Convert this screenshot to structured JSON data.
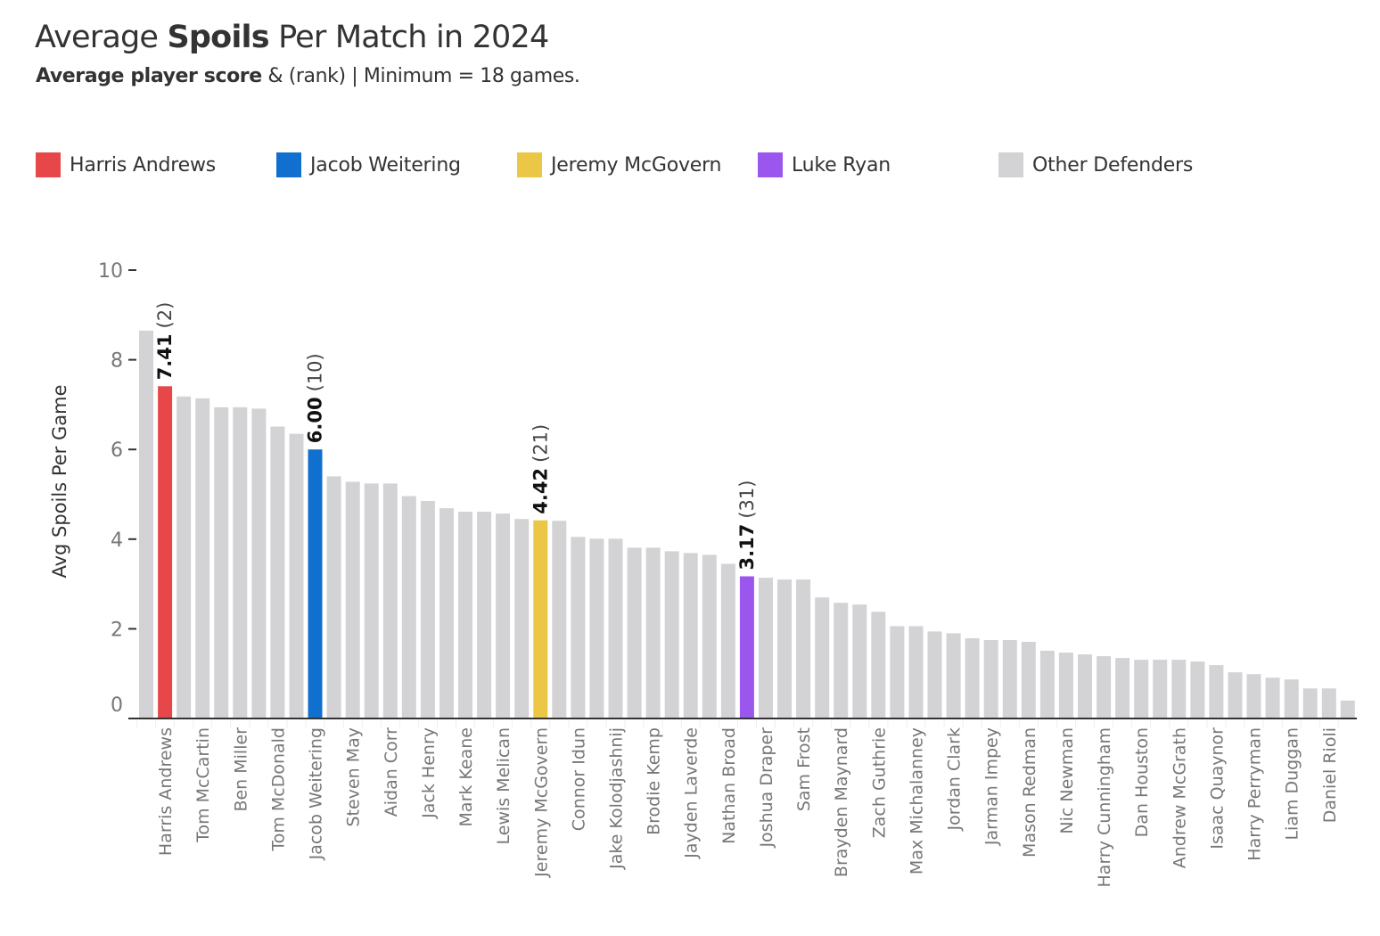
{
  "title": {
    "prefix": "Average ",
    "bold": "Spoils",
    "suffix": " Per Match in 2024"
  },
  "subtitle": {
    "bold": "Average player score",
    "rest": " & (rank) | Minimum = 18 games."
  },
  "legend": [
    {
      "label": "Harris Andrews",
      "color": "#e8474a"
    },
    {
      "label": "Jacob Weitering",
      "color": "#1170cf"
    },
    {
      "label": "Jeremy McGovern",
      "color": "#ebc745"
    },
    {
      "label": "Luke Ryan",
      "color": "#9b56ee"
    },
    {
      "label": "Other Defenders",
      "color": "#d3d3d5"
    }
  ],
  "chart_data": {
    "type": "bar",
    "title": "Average Spoils Per Match in 2024",
    "xlabel": "",
    "ylabel": "Avg Spoils Per Game",
    "ylim": [
      0,
      10
    ],
    "yticks": [
      0,
      2,
      4,
      6,
      8,
      10
    ],
    "grid": false,
    "legend_position": "top",
    "categories": [
      "",
      "Harris Andrews",
      "",
      "Tom McCartin",
      "",
      "Ben Miller",
      "",
      "Tom McDonald",
      "",
      "Jacob Weitering",
      "",
      "Steven May",
      "",
      "Aidan Corr",
      "",
      "Jack Henry",
      "",
      "Mark Keane",
      "",
      "Lewis Melican",
      "",
      "Jeremy McGovern",
      "",
      "Connor Idun",
      "",
      "Jake Kolodjashnij",
      "",
      "Brodie Kemp",
      "",
      "Jayden Laverde",
      "",
      "Nathan Broad",
      "",
      "Joshua Draper",
      "",
      "Sam Frost",
      "",
      "Brayden Maynard",
      "",
      "Zach Guthrie",
      "",
      "Max Michalanney",
      "",
      "Jordan Clark",
      "",
      "Jarman Impey",
      "",
      "Mason Redman",
      "",
      "Nic Newman",
      "",
      "Harry Cunningham",
      "",
      "Dan Houston",
      "",
      "Andrew McGrath",
      "",
      "Isaac Quaynor",
      "",
      "Harry Perryman",
      "",
      "Liam Duggan",
      "",
      "Daniel Rioli",
      ""
    ],
    "values": [
      8.65,
      7.41,
      7.18,
      7.14,
      6.94,
      6.94,
      6.91,
      6.51,
      6.35,
      6.0,
      5.4,
      5.28,
      5.24,
      5.24,
      4.96,
      4.85,
      4.69,
      4.61,
      4.61,
      4.57,
      4.45,
      4.42,
      4.41,
      4.05,
      4.01,
      4.01,
      3.81,
      3.81,
      3.73,
      3.69,
      3.65,
      3.45,
      3.17,
      3.14,
      3.1,
      3.1,
      2.7,
      2.58,
      2.54,
      2.38,
      2.06,
      2.06,
      1.94,
      1.9,
      1.79,
      1.75,
      1.75,
      1.71,
      1.51,
      1.47,
      1.43,
      1.39,
      1.35,
      1.31,
      1.31,
      1.31,
      1.27,
      1.19,
      1.03,
      0.99,
      0.91,
      0.87,
      0.67,
      0.67,
      0.4
    ],
    "highlights": [
      {
        "index": 1,
        "player": "Harris Andrews",
        "color": "#e8474a",
        "value_label": "7.41",
        "rank_label": "(2)"
      },
      {
        "index": 9,
        "player": "Jacob Weitering",
        "color": "#1170cf",
        "value_label": "6.00",
        "rank_label": "(10)"
      },
      {
        "index": 21,
        "player": "Jeremy McGovern",
        "color": "#ebc745",
        "value_label": "4.42",
        "rank_label": "(21)"
      },
      {
        "index": 32,
        "player": "Luke Ryan",
        "color": "#9b56ee",
        "value_label": "3.17",
        "rank_label": "(31)"
      }
    ],
    "default_color": "#d3d3d5"
  }
}
